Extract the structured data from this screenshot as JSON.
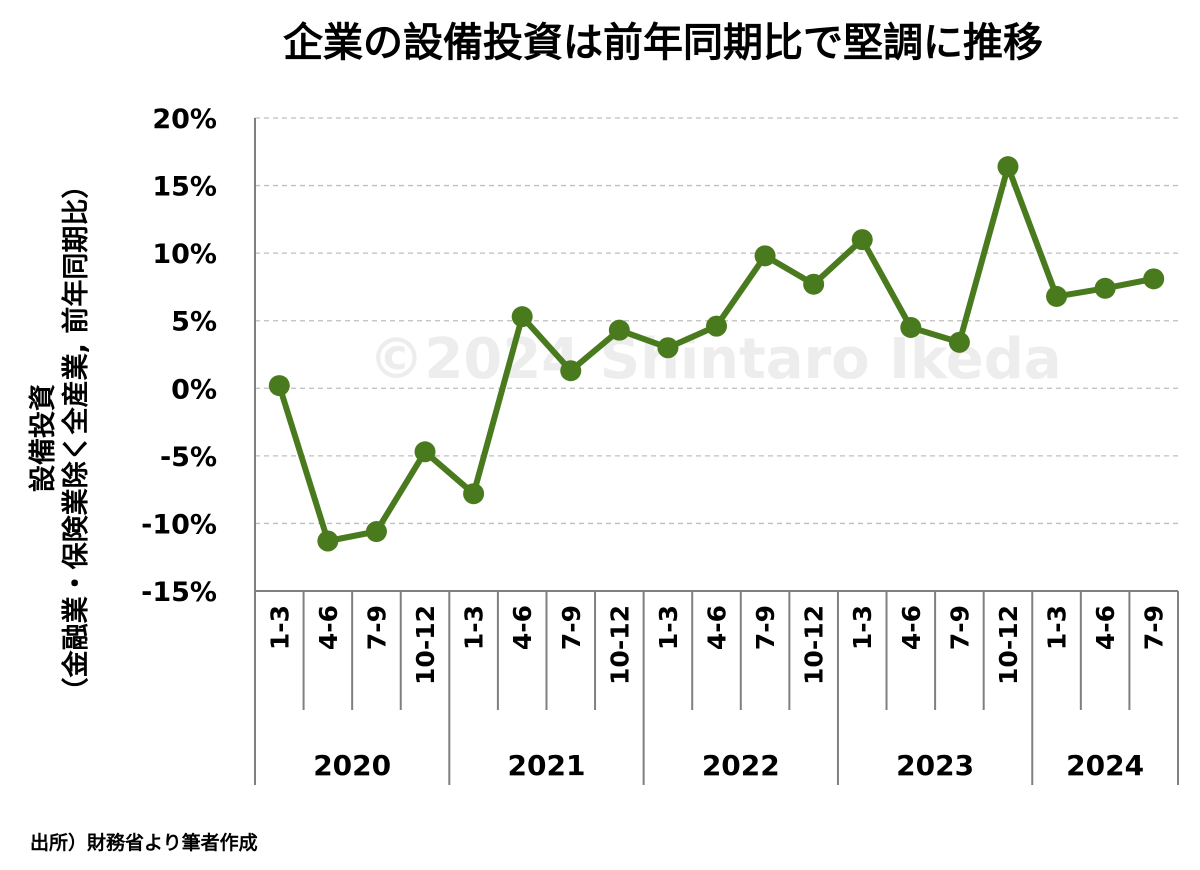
{
  "chart_data": {
    "type": "line",
    "title": "企業の設備投資は前年同期比で堅調に推移",
    "ylabel_line1": "設備投資",
    "ylabel_line2": "（金融業・保険業除く全産業, 前年同期比）",
    "y_tick_labels": [
      "20%",
      "15%",
      "10%",
      "5%",
      "0%",
      "-5%",
      "-10%",
      "-15%"
    ],
    "y_ticks": [
      20,
      15,
      10,
      5,
      0,
      -5,
      -10,
      -15
    ],
    "ylim": [
      -15,
      20
    ],
    "grid": true,
    "categories": [
      "1-3",
      "4-6",
      "7-9",
      "10-12",
      "1-3",
      "4-6",
      "7-9",
      "10-12",
      "1-3",
      "4-6",
      "7-9",
      "10-12",
      "1-3",
      "4-6",
      "7-9",
      "10-12",
      "1-3",
      "4-6",
      "7-9"
    ],
    "years": [
      {
        "label": "2020",
        "count": 4
      },
      {
        "label": "2021",
        "count": 4
      },
      {
        "label": "2022",
        "count": 4
      },
      {
        "label": "2023",
        "count": 4
      },
      {
        "label": "2024",
        "count": 3
      }
    ],
    "series": [
      {
        "values": [
          0.2,
          -11.3,
          -10.6,
          -4.7,
          -7.8,
          5.3,
          1.3,
          4.3,
          3.0,
          4.6,
          9.8,
          7.7,
          11.0,
          4.5,
          3.4,
          16.4,
          6.8,
          7.4,
          8.1
        ]
      }
    ],
    "source": "出所）財務省より筆者作成",
    "watermark": "©2024 Shintaro Ikeda",
    "colors": {
      "line": "#4a7a1e",
      "grid": "#bfbfbf",
      "axis": "#7f7f7f",
      "watermark": "#ededed"
    }
  }
}
